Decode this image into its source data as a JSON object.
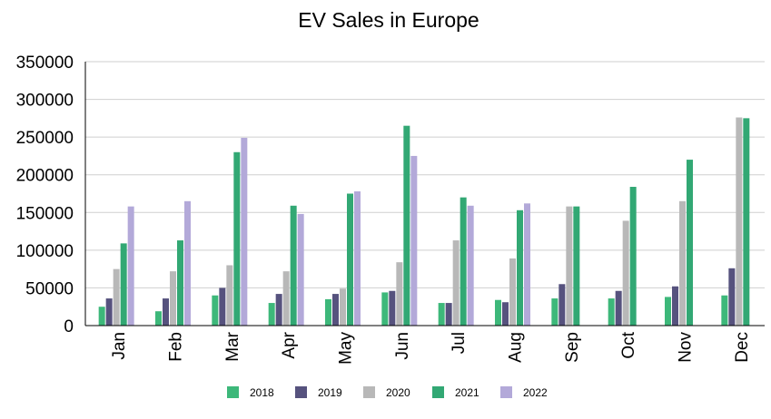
{
  "chart_data": {
    "type": "bar",
    "title": "EV Sales in Europe",
    "xlabel": "",
    "ylabel": "",
    "ylim": [
      0,
      350000
    ],
    "yticks": [
      "0",
      "50000",
      "100000",
      "150000",
      "200000",
      "250000",
      "300000",
      "350000"
    ],
    "categories": [
      "Jan",
      "Feb",
      "Mar",
      "Apr",
      "May",
      "Jun",
      "Jul",
      "Aug",
      "Sep",
      "Oct",
      "Nov",
      "Dec"
    ],
    "series": [
      {
        "name": "2018",
        "color": "#3db87a",
        "values": [
          25000,
          19000,
          40000,
          30000,
          35000,
          44000,
          30000,
          34000,
          36000,
          36000,
          38000,
          40000
        ]
      },
      {
        "name": "2019",
        "color": "#56527e",
        "values": [
          36000,
          36000,
          50000,
          42000,
          42000,
          46000,
          30000,
          31000,
          55000,
          46000,
          52000,
          76000
        ]
      },
      {
        "name": "2020",
        "color": "#b8b8b8",
        "values": [
          75000,
          72000,
          80000,
          72000,
          49000,
          84000,
          113000,
          89000,
          158000,
          139000,
          165000,
          276000
        ]
      },
      {
        "name": "2021",
        "color": "#32a874",
        "values": [
          109000,
          113000,
          230000,
          159000,
          175000,
          265000,
          170000,
          153000,
          158000,
          184000,
          220000,
          275000
        ]
      },
      {
        "name": "2022",
        "color": "#b3a9d9",
        "values": [
          158000,
          165000,
          249000,
          148000,
          178000,
          225000,
          159000,
          162000,
          null,
          null,
          null,
          null
        ]
      }
    ],
    "grid": true,
    "legend": "bottom-center"
  }
}
